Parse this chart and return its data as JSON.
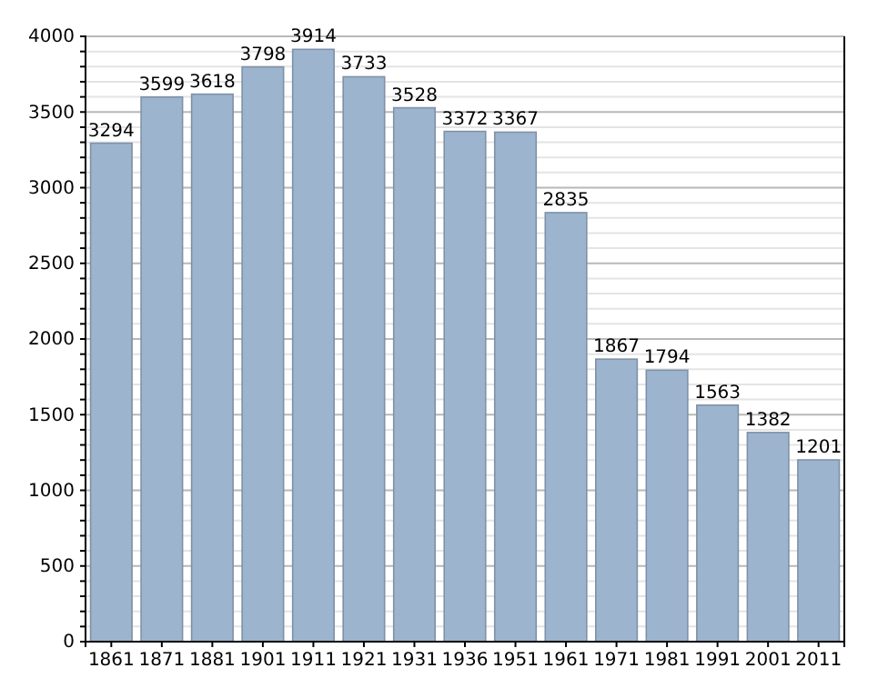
{
  "chart_data": {
    "type": "bar",
    "categories": [
      "1861",
      "1871",
      "1881",
      "1901",
      "1911",
      "1921",
      "1931",
      "1936",
      "1951",
      "1961",
      "1971",
      "1981",
      "1991",
      "2001",
      "2011"
    ],
    "values": [
      3294,
      3599,
      3618,
      3798,
      3914,
      3733,
      3528,
      3372,
      3367,
      2835,
      1867,
      1794,
      1563,
      1382,
      1201
    ],
    "color": "#9db4cf",
    "ylim": [
      0,
      4000
    ],
    "yticks": [
      0,
      {
        "value": 100,
        "label": null
      },
      {
        "value": 200,
        "label": null
      },
      {
        "value": 300,
        "label": null
      },
      {
        "value": 400,
        "label": null
      },
      500,
      {
        "value": 600,
        "label": null
      },
      {
        "value": 700,
        "label": null
      },
      {
        "value": 800,
        "label": null
      },
      {
        "value": 900,
        "label": null
      },
      1000,
      {
        "value": 1100,
        "label": null
      },
      {
        "value": 1200,
        "label": null
      },
      {
        "value": 1300,
        "label": null
      },
      {
        "value": 1400,
        "label": null
      },
      1500,
      {
        "value": 1600,
        "label": null
      },
      {
        "value": 1700,
        "label": null
      },
      {
        "value": 1800,
        "label": null
      },
      {
        "value": 1900,
        "label": null
      },
      2000,
      {
        "value": 2100,
        "label": null
      },
      {
        "value": 2200,
        "label": null
      },
      {
        "value": 2300,
        "label": null
      },
      {
        "value": 2400,
        "label": null
      },
      2500,
      {
        "value": 2600,
        "label": null
      },
      {
        "value": 2700,
        "label": null
      },
      {
        "value": 2800,
        "label": null
      },
      {
        "value": 2900,
        "label": null
      },
      3000,
      {
        "value": 3100,
        "label": null
      },
      {
        "value": 3200,
        "label": null
      },
      {
        "value": 3300,
        "label": null
      },
      {
        "value": 3400,
        "label": null
      },
      3500,
      {
        "value": 3600,
        "label": null
      },
      {
        "value": 3700,
        "label": null
      },
      {
        "value": 3800,
        "label": null
      },
      {
        "value": 3900,
        "label": null
      },
      4000
    ],
    "grid": "y",
    "data_labels": true
  }
}
